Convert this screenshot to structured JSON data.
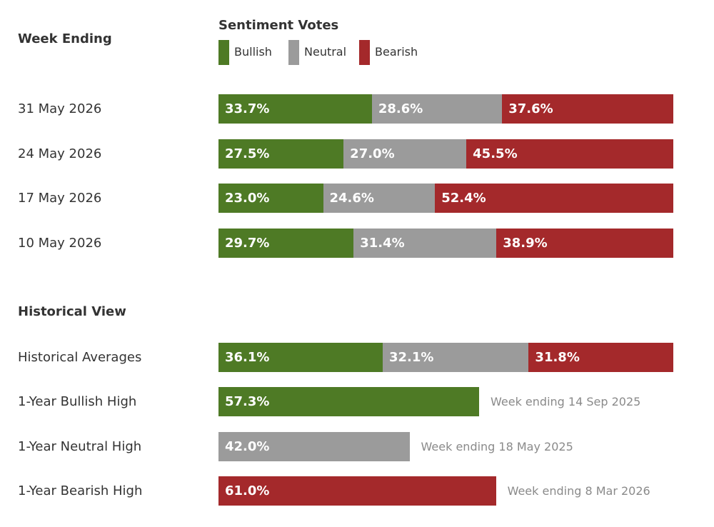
{
  "headers": {
    "week_ending": "Week Ending",
    "sentiment_votes": "Sentiment Votes",
    "historical_view": "Historical View"
  },
  "colors": {
    "bullish": "#4e7a25",
    "neutral": "#9b9b9b",
    "bearish": "#a4292b"
  },
  "chart_data": {
    "type": "bar",
    "stacked": true,
    "orientation": "horizontal",
    "xlim": [
      0,
      100
    ],
    "legend": [
      "Bullish",
      "Neutral",
      "Bearish"
    ],
    "legend_position": "top",
    "weekly": [
      {
        "label": "31 May 2026",
        "values": [
          33.7,
          28.6,
          37.6
        ],
        "labels": [
          "33.7%",
          "28.6%",
          "37.6%"
        ]
      },
      {
        "label": "24 May 2026",
        "values": [
          27.5,
          27.0,
          45.5
        ],
        "labels": [
          "27.5%",
          "27.0%",
          "45.5%"
        ]
      },
      {
        "label": "17 May 2026",
        "values": [
          23.0,
          24.6,
          52.4
        ],
        "labels": [
          "23.0%",
          "24.6%",
          "52.4%"
        ]
      },
      {
        "label": "10 May 2026",
        "values": [
          29.7,
          31.4,
          38.9
        ],
        "labels": [
          "29.7%",
          "31.4%",
          "38.9%"
        ]
      }
    ],
    "historical": {
      "label": "Historical Averages",
      "values": [
        36.1,
        32.1,
        31.8
      ],
      "labels": [
        "36.1%",
        "32.1%",
        "31.8%"
      ]
    },
    "highs": [
      {
        "label": "1-Year Bullish High",
        "series": "bullish",
        "value": 57.3,
        "value_label": "57.3%",
        "note": "Week ending 14 Sep 2025"
      },
      {
        "label": "1-Year Neutral High",
        "series": "neutral",
        "value": 42.0,
        "value_label": "42.0%",
        "note": "Week ending 18 May 2025"
      },
      {
        "label": "1-Year Bearish High",
        "series": "bearish",
        "value": 61.0,
        "value_label": "61.0%",
        "note": "Week ending 8 Mar 2026"
      }
    ]
  }
}
